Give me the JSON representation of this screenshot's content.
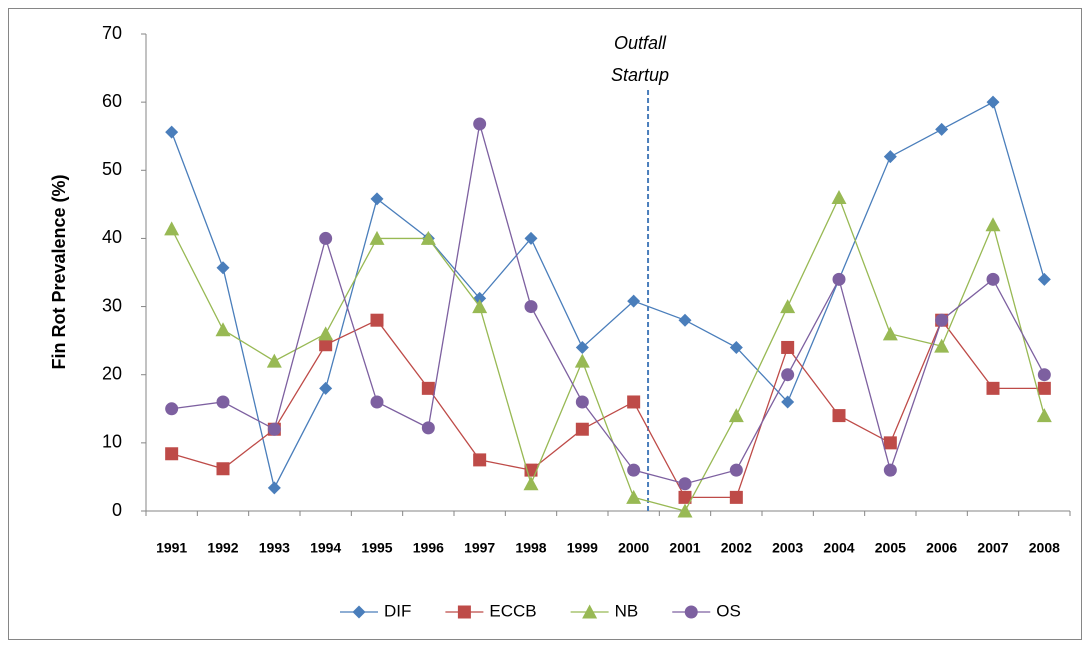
{
  "chart_data": {
    "type": "line",
    "y_axis_label": "Fin Rot Prevalence (%)",
    "annotation": [
      "Outfall",
      "Startup"
    ],
    "categories": [
      "1991",
      "1992",
      "1993",
      "1994",
      "1995",
      "1996",
      "1997",
      "1998",
      "1999",
      "2000",
      "2001",
      "2002",
      "2003",
      "2004",
      "2005",
      "2006",
      "2007",
      "2008"
    ],
    "series": [
      {
        "name": "DIF",
        "color": "#4a7ebb",
        "marker": "diamond",
        "values": [
          55.6,
          35.7,
          3.4,
          18,
          45.8,
          40,
          31.2,
          40,
          24,
          30.8,
          28,
          24,
          16,
          34,
          52,
          56,
          60,
          34
        ]
      },
      {
        "name": "ECCB",
        "color": "#be4b48",
        "marker": "square",
        "values": [
          8.4,
          6.2,
          12,
          24.4,
          28,
          18,
          7.5,
          6,
          12,
          16,
          2,
          2,
          24,
          14,
          10,
          28,
          18,
          18
        ]
      },
      {
        "name": "NB",
        "color": "#98b954",
        "marker": "triangle",
        "values": [
          41.4,
          26.6,
          22,
          26,
          40,
          40,
          30,
          4,
          22,
          2,
          0,
          14,
          30,
          46,
          26,
          24.2,
          42,
          14
        ]
      },
      {
        "name": "OS",
        "color": "#7d60a0",
        "marker": "circle",
        "values": [
          15,
          16,
          12,
          40,
          16,
          12.2,
          56.8,
          30,
          16,
          6,
          4,
          6,
          20,
          34,
          6,
          28,
          34,
          20
        ]
      }
    ],
    "ylim": [
      0,
      70
    ],
    "yticks": [
      0,
      10,
      20,
      30,
      40,
      50,
      60,
      70
    ],
    "grid": false,
    "legend": "bottom"
  }
}
